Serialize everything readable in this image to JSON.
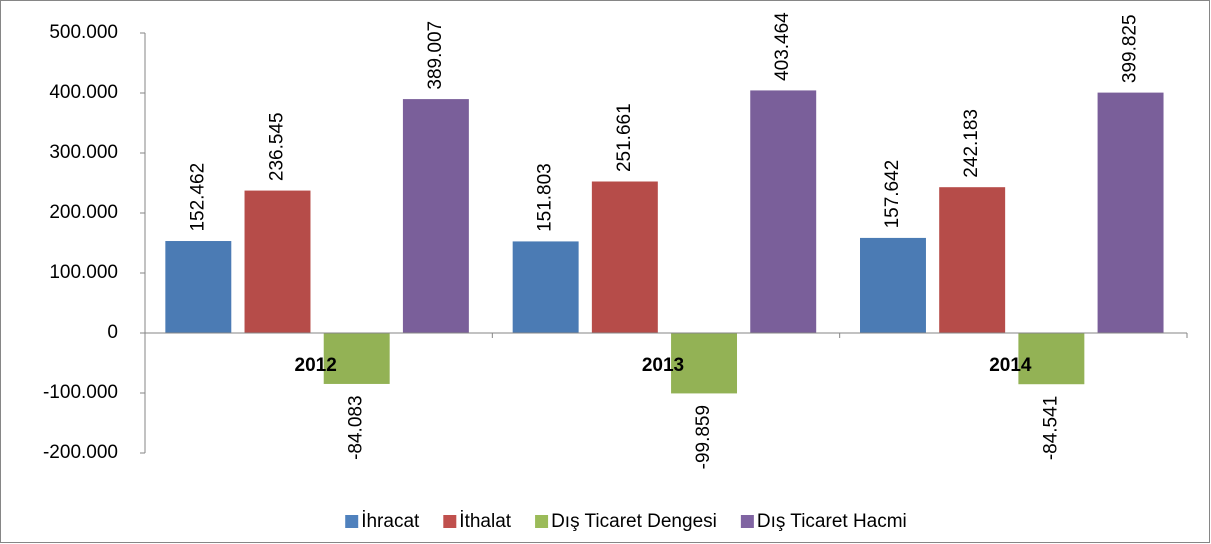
{
  "chart_data": {
    "type": "bar",
    "categories": [
      "2012",
      "2013",
      "2014"
    ],
    "series": [
      {
        "name": "İhracat",
        "color": "#4f81bd",
        "values": [
          152462,
          151803,
          157642
        ],
        "value_labels": [
          "152.462",
          "151.803",
          "157.642"
        ]
      },
      {
        "name": "İthalat",
        "color": "#c0504d",
        "values": [
          236545,
          251661,
          242183
        ],
        "value_labels": [
          "236.545",
          "251.661",
          "242.183"
        ]
      },
      {
        "name": "Dış Ticaret Dengesi",
        "color": "#9bbb59",
        "values": [
          -84083,
          -99859,
          -84541
        ],
        "value_labels": [
          "-84.083",
          "-99.859",
          "-84.541"
        ]
      },
      {
        "name": "Dış Ticaret Hacmi",
        "color": "#8064a2",
        "values": [
          389007,
          403464,
          399825
        ],
        "value_labels": [
          "389.007",
          "403.464",
          "399.825"
        ]
      }
    ],
    "ylim": [
      -200000,
      500000
    ],
    "yticks": [
      {
        "value": -200000,
        "label": "-200.000"
      },
      {
        "value": -100000,
        "label": "-100.000"
      },
      0,
      {
        "value": 100000,
        "label": "100.000"
      },
      {
        "value": 200000,
        "label": "200.000"
      },
      {
        "value": 300000,
        "label": "300.000"
      },
      {
        "value": 400000,
        "label": "400.000"
      },
      {
        "value": 500000,
        "label": "500.000"
      }
    ],
    "legend": "bottom"
  }
}
